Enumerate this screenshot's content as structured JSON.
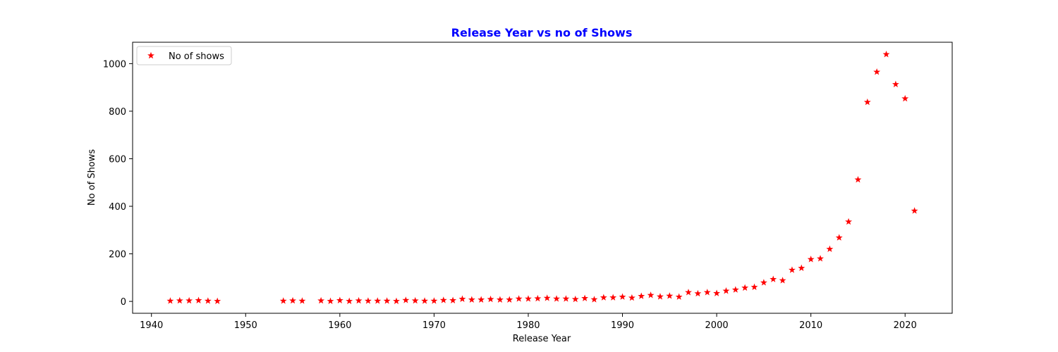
{
  "chart_data": {
    "type": "scatter",
    "title": "Release Year vs no of Shows",
    "title_color": "#0000ff",
    "xlabel": "Release Year",
    "ylabel": "No of Shows",
    "xlim": [
      1938,
      2025
    ],
    "ylim": [
      -50,
      1090
    ],
    "x_ticks": [
      1940,
      1950,
      1960,
      1970,
      1980,
      1990,
      2000,
      2010,
      2020
    ],
    "y_ticks": [
      0,
      200,
      400,
      600,
      800,
      1000
    ],
    "grid": false,
    "legend_position": "top-left",
    "marker": "star",
    "series": [
      {
        "name": "No of shows",
        "color": "#ff0000",
        "points": [
          {
            "x": 1942,
            "y": 2
          },
          {
            "x": 1943,
            "y": 3
          },
          {
            "x": 1944,
            "y": 3
          },
          {
            "x": 1945,
            "y": 4
          },
          {
            "x": 1946,
            "y": 2
          },
          {
            "x": 1947,
            "y": 1
          },
          {
            "x": 1954,
            "y": 2
          },
          {
            "x": 1955,
            "y": 3
          },
          {
            "x": 1956,
            "y": 2
          },
          {
            "x": 1958,
            "y": 3
          },
          {
            "x": 1959,
            "y": 1
          },
          {
            "x": 1960,
            "y": 4
          },
          {
            "x": 1961,
            "y": 1
          },
          {
            "x": 1962,
            "y": 3
          },
          {
            "x": 1963,
            "y": 2
          },
          {
            "x": 1964,
            "y": 2
          },
          {
            "x": 1965,
            "y": 2
          },
          {
            "x": 1966,
            "y": 1
          },
          {
            "x": 1967,
            "y": 5
          },
          {
            "x": 1968,
            "y": 3
          },
          {
            "x": 1969,
            "y": 2
          },
          {
            "x": 1970,
            "y": 2
          },
          {
            "x": 1971,
            "y": 5
          },
          {
            "x": 1972,
            "y": 4
          },
          {
            "x": 1973,
            "y": 10
          },
          {
            "x": 1974,
            "y": 7
          },
          {
            "x": 1975,
            "y": 7
          },
          {
            "x": 1976,
            "y": 9
          },
          {
            "x": 1977,
            "y": 7
          },
          {
            "x": 1978,
            "y": 7
          },
          {
            "x": 1979,
            "y": 11
          },
          {
            "x": 1980,
            "y": 11
          },
          {
            "x": 1981,
            "y": 12
          },
          {
            "x": 1982,
            "y": 14
          },
          {
            "x": 1983,
            "y": 11
          },
          {
            "x": 1984,
            "y": 11
          },
          {
            "x": 1985,
            "y": 9
          },
          {
            "x": 1986,
            "y": 13
          },
          {
            "x": 1987,
            "y": 8
          },
          {
            "x": 1988,
            "y": 16
          },
          {
            "x": 1989,
            "y": 16
          },
          {
            "x": 1990,
            "y": 19
          },
          {
            "x": 1991,
            "y": 15
          },
          {
            "x": 1992,
            "y": 22
          },
          {
            "x": 1993,
            "y": 26
          },
          {
            "x": 1994,
            "y": 20
          },
          {
            "x": 1995,
            "y": 23
          },
          {
            "x": 1996,
            "y": 19
          },
          {
            "x": 1997,
            "y": 38
          },
          {
            "x": 1998,
            "y": 33
          },
          {
            "x": 1999,
            "y": 38
          },
          {
            "x": 2000,
            "y": 34
          },
          {
            "x": 2001,
            "y": 44
          },
          {
            "x": 2002,
            "y": 49
          },
          {
            "x": 2003,
            "y": 57
          },
          {
            "x": 2004,
            "y": 60
          },
          {
            "x": 2005,
            "y": 79
          },
          {
            "x": 2006,
            "y": 93
          },
          {
            "x": 2007,
            "y": 88
          },
          {
            "x": 2008,
            "y": 132
          },
          {
            "x": 2009,
            "y": 140
          },
          {
            "x": 2010,
            "y": 177
          },
          {
            "x": 2011,
            "y": 180
          },
          {
            "x": 2012,
            "y": 220
          },
          {
            "x": 2013,
            "y": 268
          },
          {
            "x": 2014,
            "y": 335
          },
          {
            "x": 2015,
            "y": 512
          },
          {
            "x": 2016,
            "y": 838
          },
          {
            "x": 2017,
            "y": 965
          },
          {
            "x": 2018,
            "y": 1039
          },
          {
            "x": 2019,
            "y": 913
          },
          {
            "x": 2020,
            "y": 853
          },
          {
            "x": 2021,
            "y": 381
          }
        ]
      }
    ]
  }
}
